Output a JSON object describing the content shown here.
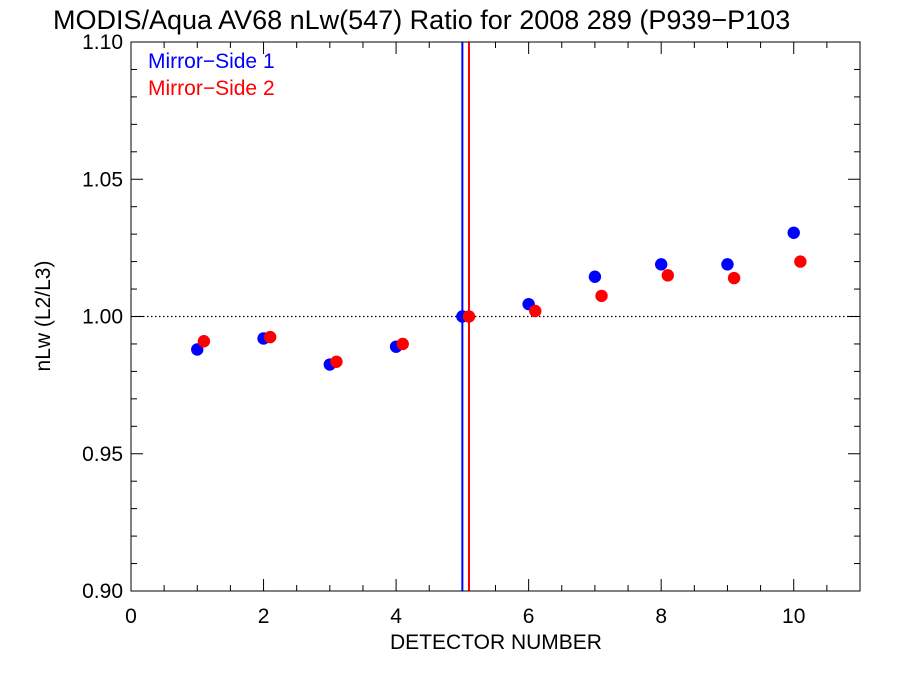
{
  "chart_data": {
    "type": "scatter",
    "title": "MODIS/Aqua AV68 nLw(547) Ratio for 2008 289 (P939−P103",
    "xlabel": "DETECTOR NUMBER",
    "ylabel": "nLw (L2/L3)",
    "xlim": [
      0,
      11
    ],
    "ylim": [
      0.9,
      1.1
    ],
    "x_ticks": [
      0,
      2,
      4,
      6,
      8,
      10
    ],
    "x_tick_labels": [
      "0",
      "2",
      "4",
      "6",
      "8",
      "10"
    ],
    "y_ticks": [
      0.9,
      0.95,
      1.0,
      1.05,
      1.1
    ],
    "y_tick_labels": [
      "0.90",
      "0.95",
      "1.00",
      "1.05",
      "1.10"
    ],
    "reference_line_y": 1.0,
    "vertical_lines": [
      {
        "x": 5.0,
        "color": "#0000ff"
      },
      {
        "x": 5.1,
        "color": "#ff0000"
      }
    ],
    "legend_position": "top-left",
    "series": [
      {
        "name": "Mirror−Side 1",
        "color": "#0000ff",
        "x": [
          1,
          2,
          3,
          4,
          5,
          6,
          7,
          8,
          9,
          10
        ],
        "y": [
          0.988,
          0.992,
          0.9825,
          0.989,
          1.0,
          1.0045,
          1.0145,
          1.019,
          1.019,
          1.0305
        ]
      },
      {
        "name": "Mirror−Side 2",
        "color": "#ff0000",
        "x": [
          1.1,
          2.1,
          3.1,
          4.1,
          5.1,
          6.1,
          7.1,
          8.1,
          9.1,
          10.1
        ],
        "y": [
          0.991,
          0.9925,
          0.9835,
          0.99,
          1.0,
          1.002,
          1.0075,
          1.015,
          1.014,
          1.02
        ]
      }
    ]
  }
}
